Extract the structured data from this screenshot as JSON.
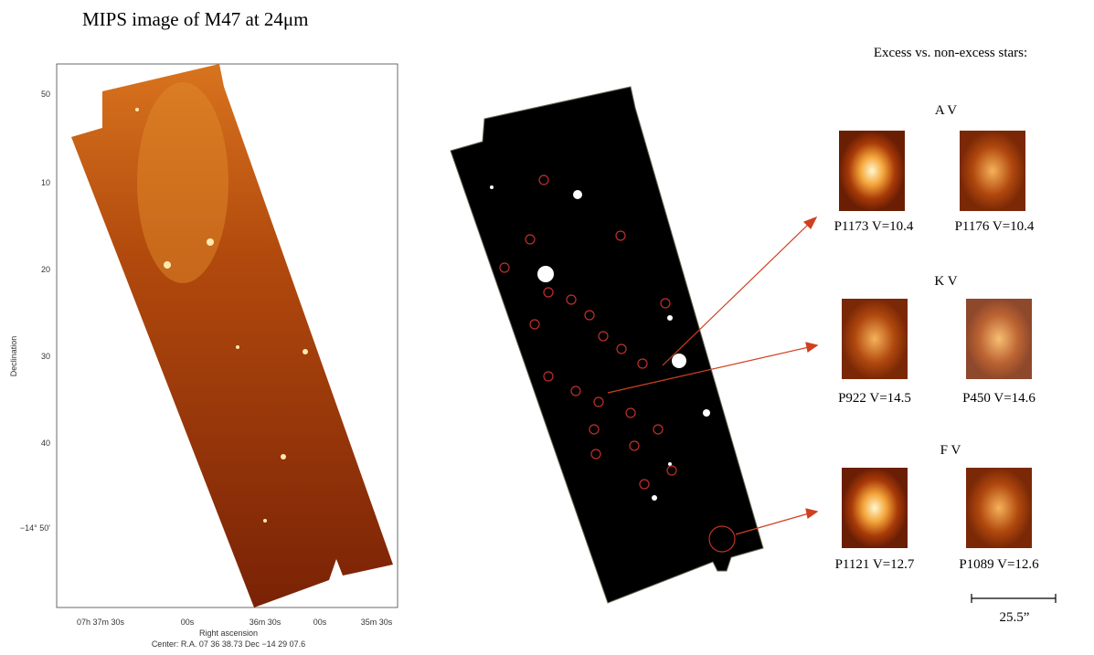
{
  "title": "MIPS image of M47 at  24μm",
  "left_panel": {
    "y_axis_label": "Declination",
    "y_ticks": [
      "50",
      "10",
      "20",
      "30",
      "40",
      "−14° 50'"
    ],
    "x_ticks": [
      "07h 37m 30s",
      "00s",
      "36m 30s",
      "00s",
      "35m 30s"
    ],
    "x_axis_label": "Right ascension",
    "center": "Center:  R.A.  07 36 38.73     Dec  −14 29 07.6"
  },
  "right_panel": {
    "heading": "Excess vs. non-excess stars:",
    "groups": [
      {
        "label": "A V",
        "stars": [
          "P1173 V=10.4",
          "P1176 V=10.4"
        ]
      },
      {
        "label": "K V",
        "stars": [
          "P922 V=14.5",
          "P450 V=14.6"
        ]
      },
      {
        "label": "F V",
        "stars": [
          "P1121 V=12.7",
          "P1089 V=12.6"
        ]
      }
    ],
    "scale_bar": "25.5”"
  }
}
